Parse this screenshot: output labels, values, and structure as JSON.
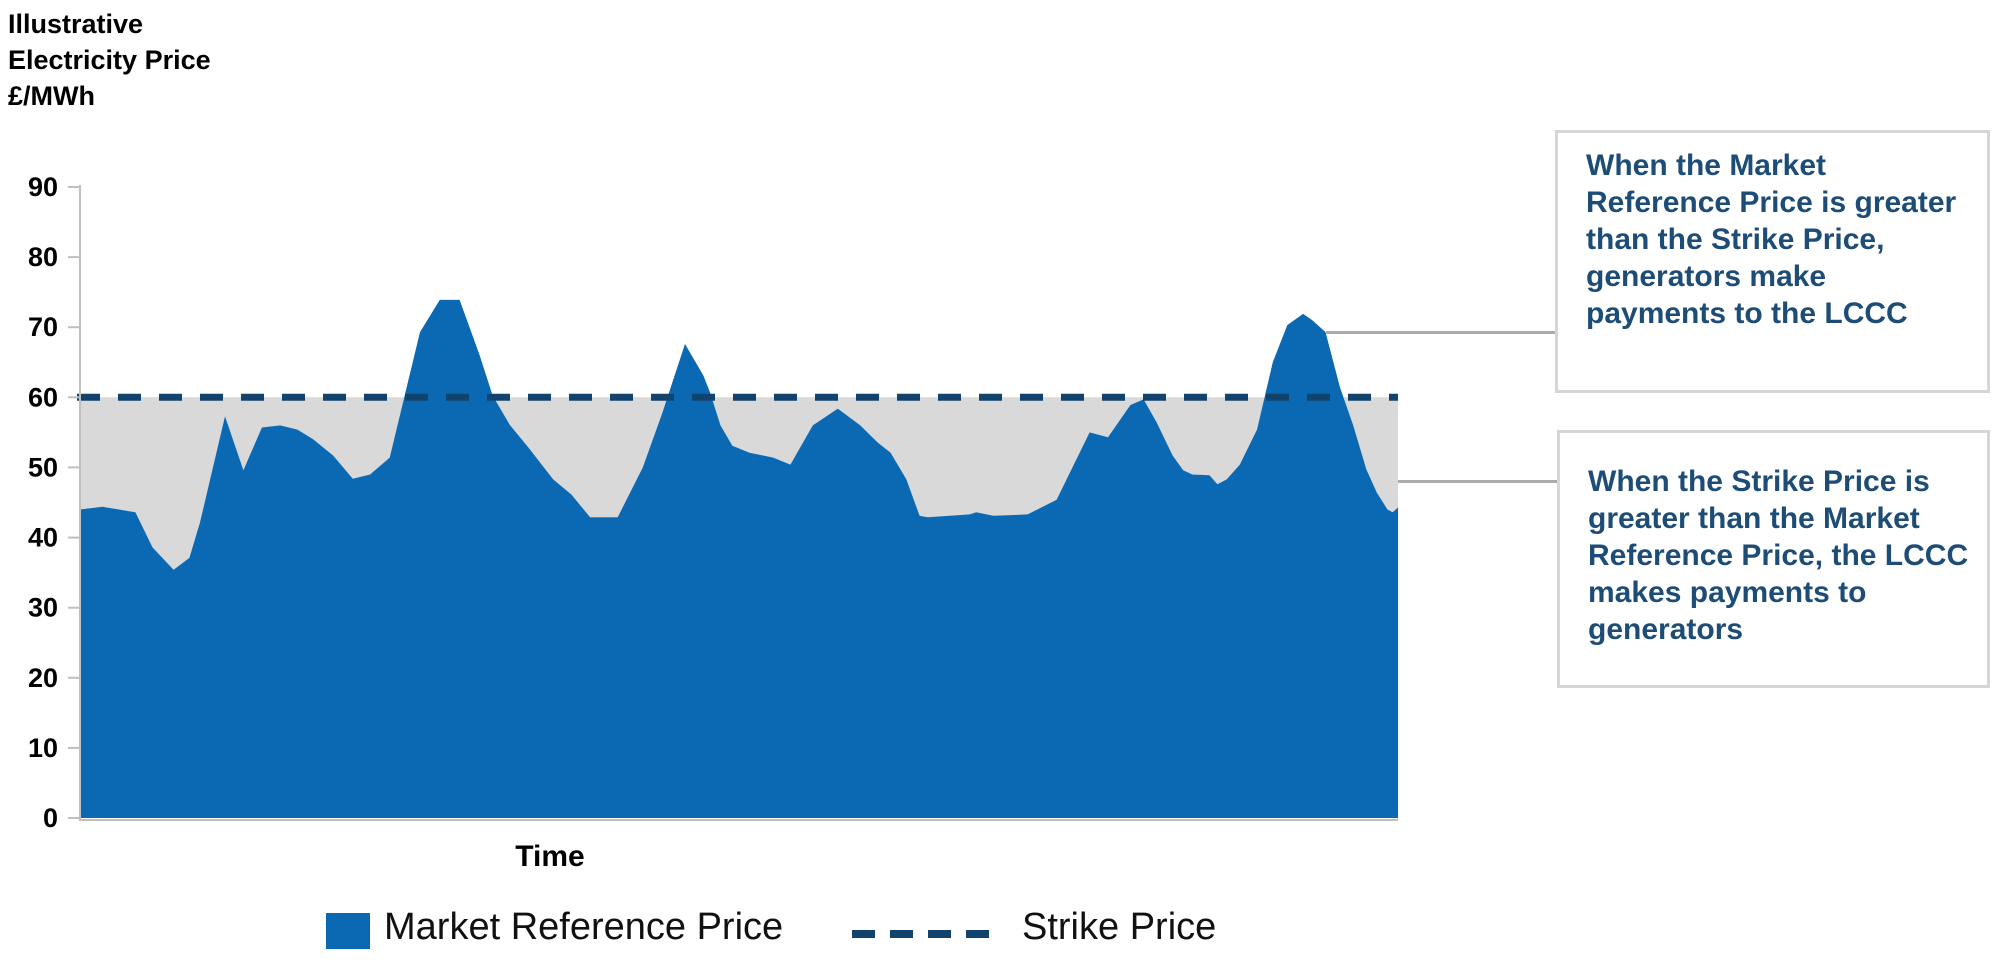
{
  "chart_data": {
    "type": "area",
    "title": "",
    "ylabel": "Illustrative Electricity Price £/MWh",
    "ylabel_lines": [
      "Illustrative",
      "Electricity Price",
      "£/MWh"
    ],
    "xlabel": "Time",
    "ylim": [
      0,
      90
    ],
    "yticks": [
      0,
      10,
      20,
      30,
      40,
      50,
      60,
      70,
      80,
      90
    ],
    "x_axis_has_tick_labels": false,
    "grid": "off",
    "legend_position": "bottom",
    "strike_price": 60,
    "colors": {
      "area": "#0b69b3",
      "shortfall": "#d9d9d9",
      "strike": "#12436d"
    },
    "series": [
      {
        "name": "Market Reference Price",
        "type": "area",
        "x_unit": "time (relative 0-100, no tick labels shown)",
        "points": [
          [
            0,
            44
          ],
          [
            1.7,
            44.4
          ],
          [
            4.2,
            43.6
          ],
          [
            5.5,
            38.6
          ],
          [
            7.1,
            35.4
          ],
          [
            8.3,
            37.1
          ],
          [
            9.1,
            42.1
          ],
          [
            11,
            57.3
          ],
          [
            12.4,
            49.6
          ],
          [
            13.8,
            55.7
          ],
          [
            15.2,
            56
          ],
          [
            16.5,
            55.4
          ],
          [
            17.7,
            54
          ],
          [
            19.2,
            51.7
          ],
          [
            20.7,
            48.4
          ],
          [
            22,
            49
          ],
          [
            23.5,
            51.4
          ],
          [
            25.8,
            69.3
          ],
          [
            27.3,
            73.9
          ],
          [
            28.8,
            73.9
          ],
          [
            30.3,
            66.1
          ],
          [
            31.3,
            60.3
          ],
          [
            32.6,
            56.1
          ],
          [
            34,
            52.9
          ],
          [
            35.9,
            48.3
          ],
          [
            37.3,
            46.1
          ],
          [
            38.7,
            42.9
          ],
          [
            40.8,
            42.9
          ],
          [
            42.7,
            50
          ],
          [
            44.2,
            57.9
          ],
          [
            45.9,
            67.6
          ],
          [
            47.3,
            63.1
          ],
          [
            47.8,
            60.7
          ],
          [
            48.6,
            56
          ],
          [
            49.5,
            53.1
          ],
          [
            50.8,
            52.1
          ],
          [
            52.6,
            51.4
          ],
          [
            53.9,
            50.4
          ],
          [
            55.6,
            56
          ],
          [
            57.5,
            58.4
          ],
          [
            59.2,
            56
          ],
          [
            60.5,
            53.6
          ],
          [
            61.5,
            52.1
          ],
          [
            62.7,
            48.3
          ],
          [
            63.7,
            43.1
          ],
          [
            64.3,
            42.9
          ],
          [
            67.5,
            43.3
          ],
          [
            68,
            43.6
          ],
          [
            69.3,
            43.1
          ],
          [
            71.9,
            43.3
          ],
          [
            74.1,
            45.4
          ],
          [
            76.6,
            55
          ],
          [
            78,
            54.3
          ],
          [
            79.7,
            58.9
          ],
          [
            80.7,
            59.7
          ],
          [
            81.7,
            56.4
          ],
          [
            82.9,
            51.7
          ],
          [
            83.7,
            49.6
          ],
          [
            84.4,
            49
          ],
          [
            85.7,
            48.9
          ],
          [
            86.3,
            47.6
          ],
          [
            87,
            48.3
          ],
          [
            88,
            50.4
          ],
          [
            89.3,
            55.4
          ],
          [
            90.5,
            65
          ],
          [
            91.6,
            70.3
          ],
          [
            92.8,
            71.9
          ],
          [
            93.5,
            71
          ],
          [
            94.5,
            69.3
          ],
          [
            95.6,
            61.4
          ],
          [
            96.6,
            56
          ],
          [
            97.6,
            49.7
          ],
          [
            98.4,
            46.4
          ],
          [
            99.2,
            44
          ],
          [
            99.6,
            43.6
          ],
          [
            100,
            44.3
          ]
        ]
      },
      {
        "name": "Strike Price",
        "type": "dashed-line",
        "value": 60
      }
    ]
  },
  "legend": {
    "items": [
      {
        "label": "Market Reference Price",
        "swatch": "filled-square"
      },
      {
        "label": "Strike Price",
        "swatch": "dashed-line"
      }
    ]
  },
  "annotations": [
    {
      "text": "When the Market Reference Price is greater than the Strike Price, generators make payments to the LCCC",
      "lines": [
        "When the Market",
        "Reference Price is greater",
        "than the Strike Price,",
        "generators make",
        "payments to the LCCC"
      ],
      "text_color": "#1d4d77"
    },
    {
      "text": "When the Strike Price is greater than the Market Reference Price, the LCCC makes payments to generators",
      "lines": [
        "When the Strike Price is",
        "greater than the Market",
        "Reference Price, the LCCC",
        "makes payments to",
        "generators"
      ],
      "text_color": "#1d4d77"
    }
  ]
}
